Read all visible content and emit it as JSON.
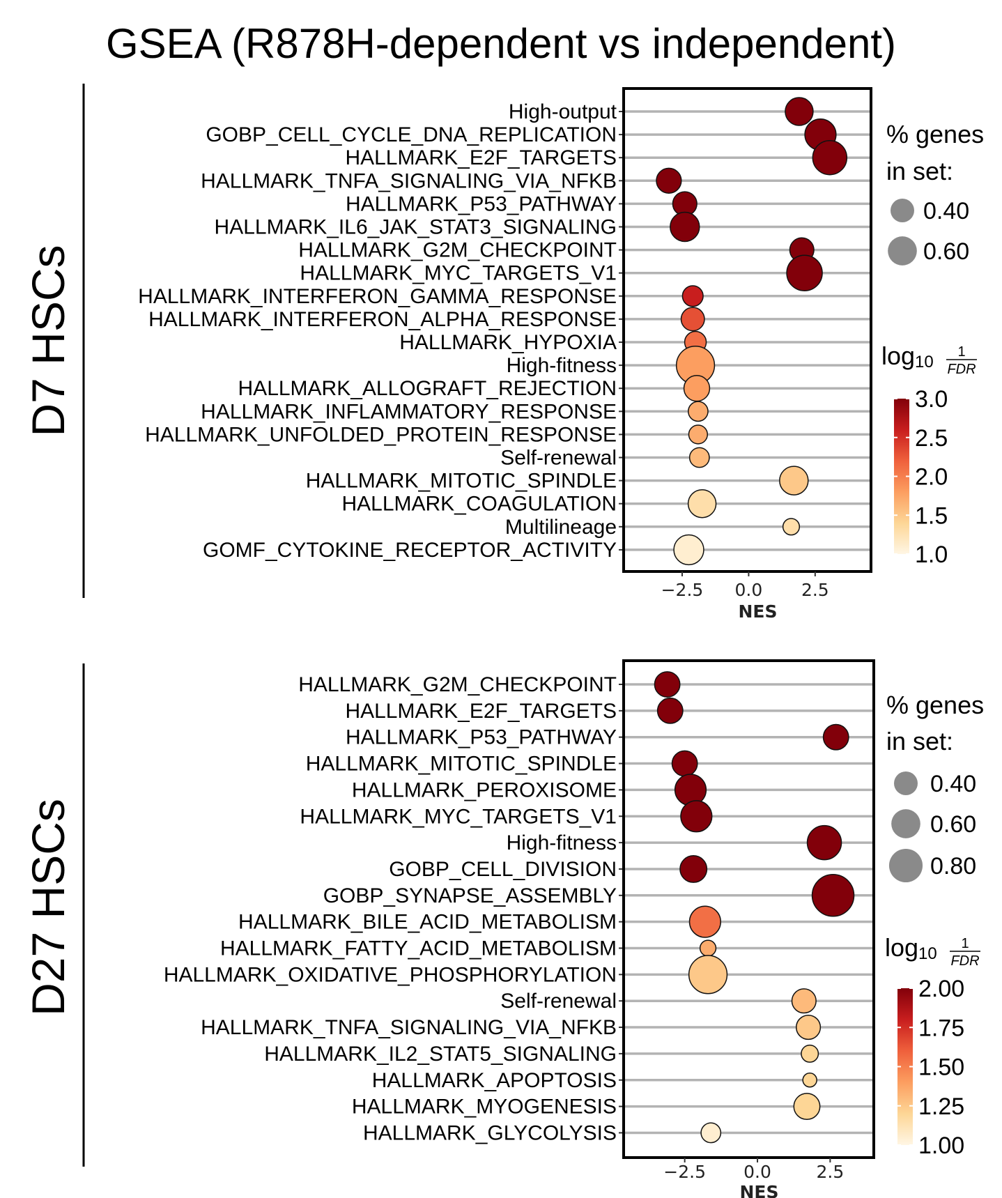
{
  "title": "GSEA (R878H-dependent vs independent)",
  "chart_data": [
    {
      "type": "scatter",
      "panel": "D7 HSCs",
      "xlabel": "NES",
      "xlim": [
        -4.7,
        4.6
      ],
      "xticks": [
        -2.5,
        0.0,
        2.5
      ],
      "xtick_labels": [
        "−2.5",
        "0.0",
        "2.5"
      ],
      "size_legend_title_1": "% genes",
      "size_legend_title_2": "in set:",
      "size_legend_values": [
        0.4,
        0.6
      ],
      "size_legend_labels": [
        "0.40",
        "0.60"
      ],
      "color_legend_log": "log",
      "color_legend_sub": "10",
      "color_legend_num": "1",
      "color_legend_den": "FDR",
      "color_range": [
        1.0,
        3.0
      ],
      "color_ticks": [
        3.0,
        2.5,
        2.0,
        1.5,
        1.0
      ],
      "color_tick_labels": [
        "3.0",
        "2.5",
        "2.0",
        "1.5",
        "1.0"
      ],
      "terms": [
        {
          "name": "High-output",
          "nes": 1.9,
          "size": 0.4,
          "log10_inv_fdr": 3.0
        },
        {
          "name": "GOBP_CELL_CYCLE_DNA_REPLICATION",
          "nes": 2.7,
          "size": 0.5,
          "log10_inv_fdr": 3.0
        },
        {
          "name": "HALLMARK_E2F_TARGETS",
          "nes": 3.05,
          "size": 0.6,
          "log10_inv_fdr": 3.0
        },
        {
          "name": "HALLMARK_TNFA_SIGNALING_VIA_NFKB",
          "nes": -3.0,
          "size": 0.32,
          "log10_inv_fdr": 3.0
        },
        {
          "name": "HALLMARK_P53_PATHWAY",
          "nes": -2.4,
          "size": 0.3,
          "log10_inv_fdr": 3.0
        },
        {
          "name": "HALLMARK_IL6_JAK_STAT3_SIGNALING",
          "nes": -2.4,
          "size": 0.44,
          "log10_inv_fdr": 3.0
        },
        {
          "name": "HALLMARK_G2M_CHECKPOINT",
          "nes": 2.0,
          "size": 0.3,
          "log10_inv_fdr": 3.0
        },
        {
          "name": "HALLMARK_MYC_TARGETS_V1",
          "nes": 2.1,
          "size": 0.65,
          "log10_inv_fdr": 3.0
        },
        {
          "name": "HALLMARK_INTERFERON_GAMMA_RESPONSE",
          "nes": -2.1,
          "size": 0.22,
          "log10_inv_fdr": 2.6
        },
        {
          "name": "HALLMARK_INTERFERON_ALPHA_RESPONSE",
          "nes": -2.1,
          "size": 0.28,
          "log10_inv_fdr": 2.3
        },
        {
          "name": "HALLMARK_HYPOXIA",
          "nes": -2.0,
          "size": 0.24,
          "log10_inv_fdr": 2.1
        },
        {
          "name": "High-fitness",
          "nes": -2.0,
          "size": 0.75,
          "log10_inv_fdr": 1.8
        },
        {
          "name": "HALLMARK_ALLOGRAFT_REJECTION",
          "nes": -1.95,
          "size": 0.34,
          "log10_inv_fdr": 1.8
        },
        {
          "name": "HALLMARK_INFLAMMATORY_RESPONSE",
          "nes": -1.9,
          "size": 0.2,
          "log10_inv_fdr": 1.7
        },
        {
          "name": "HALLMARK_UNFOLDED_PROTEIN_RESPONSE",
          "nes": -1.9,
          "size": 0.18,
          "log10_inv_fdr": 1.7
        },
        {
          "name": "Self-renewal",
          "nes": -1.85,
          "size": 0.2,
          "log10_inv_fdr": 1.6
        },
        {
          "name": "HALLMARK_MITOTIC_SPINDLE",
          "nes": 1.7,
          "size": 0.42,
          "log10_inv_fdr": 1.5
        },
        {
          "name": "HALLMARK_COAGULATION",
          "nes": -1.75,
          "size": 0.4,
          "log10_inv_fdr": 1.3
        },
        {
          "name": "Multilineage",
          "nes": 1.6,
          "size": 0.14,
          "log10_inv_fdr": 1.3
        },
        {
          "name": "GOMF_CYTOKINE_RECEPTOR_ACTIVITY",
          "nes": -2.25,
          "size": 0.46,
          "log10_inv_fdr": 1.1
        }
      ]
    },
    {
      "type": "scatter",
      "panel": "D27 HSCs",
      "xlabel": "NES",
      "xlim": [
        -4.6,
        4.0
      ],
      "xticks": [
        -2.5,
        0.0,
        2.5
      ],
      "xtick_labels": [
        "−2.5",
        "0.0",
        "2.5"
      ],
      "size_legend_title_1": "% genes",
      "size_legend_title_2": "in set:",
      "size_legend_values": [
        0.4,
        0.6,
        0.8
      ],
      "size_legend_labels": [
        "0.40",
        "0.60",
        "0.80"
      ],
      "color_legend_log": "log",
      "color_legend_sub": "10",
      "color_legend_num": "1",
      "color_legend_den": "FDR",
      "color_range": [
        1.0,
        2.0
      ],
      "color_ticks": [
        2.0,
        1.75,
        1.5,
        1.25,
        1.0
      ],
      "color_tick_labels": [
        "2.00",
        "1.75",
        "1.50",
        "1.25",
        "1.00"
      ],
      "terms": [
        {
          "name": "HALLMARK_G2M_CHECKPOINT",
          "nes": -3.1,
          "size": 0.33,
          "log10_inv_fdr": 2.0
        },
        {
          "name": "HALLMARK_E2F_TARGETS",
          "nes": -3.0,
          "size": 0.33,
          "log10_inv_fdr": 2.0
        },
        {
          "name": "HALLMARK_P53_PATHWAY",
          "nes": 2.7,
          "size": 0.33,
          "log10_inv_fdr": 2.0
        },
        {
          "name": "HALLMARK_MITOTIC_SPINDLE",
          "nes": -2.5,
          "size": 0.33,
          "log10_inv_fdr": 2.0
        },
        {
          "name": "HALLMARK_PEROXISOME",
          "nes": -2.3,
          "size": 0.5,
          "log10_inv_fdr": 2.0
        },
        {
          "name": "HALLMARK_MYC_TARGETS_V1",
          "nes": -2.1,
          "size": 0.5,
          "log10_inv_fdr": 2.0
        },
        {
          "name": "High-fitness",
          "nes": 2.3,
          "size": 0.6,
          "log10_inv_fdr": 2.0
        },
        {
          "name": "GOBP_CELL_DIVISION",
          "nes": -2.2,
          "size": 0.37,
          "log10_inv_fdr": 2.0
        },
        {
          "name": "GOBP_SYNAPSE_ASSEMBLY",
          "nes": 2.6,
          "size": 0.9,
          "log10_inv_fdr": 2.0
        },
        {
          "name": "HALLMARK_BILE_ACID_METABOLISM",
          "nes": -1.8,
          "size": 0.5,
          "log10_inv_fdr": 1.55
        },
        {
          "name": "HALLMARK_FATTY_ACID_METABOLISM",
          "nes": -1.7,
          "size": 0.13,
          "log10_inv_fdr": 1.35
        },
        {
          "name": "HALLMARK_OXIDATIVE_PHOSPHORYLATION",
          "nes": -1.7,
          "size": 0.75,
          "log10_inv_fdr": 1.25
        },
        {
          "name": "Self-renewal",
          "nes": 1.6,
          "size": 0.3,
          "log10_inv_fdr": 1.3
        },
        {
          "name": "HALLMARK_TNFA_SIGNALING_VIA_NFKB",
          "nes": 1.75,
          "size": 0.3,
          "log10_inv_fdr": 1.25
        },
        {
          "name": "HALLMARK_IL2_STAT5_SIGNALING",
          "nes": 1.8,
          "size": 0.15,
          "log10_inv_fdr": 1.2
        },
        {
          "name": "HALLMARK_APOPTOSIS",
          "nes": 1.8,
          "size": 0.1,
          "log10_inv_fdr": 1.2
        },
        {
          "name": "HALLMARK_MYOGENESIS",
          "nes": 1.7,
          "size": 0.35,
          "log10_inv_fdr": 1.2
        },
        {
          "name": "HALLMARK_GLYCOLYSIS",
          "nes": -1.6,
          "size": 0.2,
          "log10_inv_fdr": 1.05
        }
      ]
    }
  ]
}
